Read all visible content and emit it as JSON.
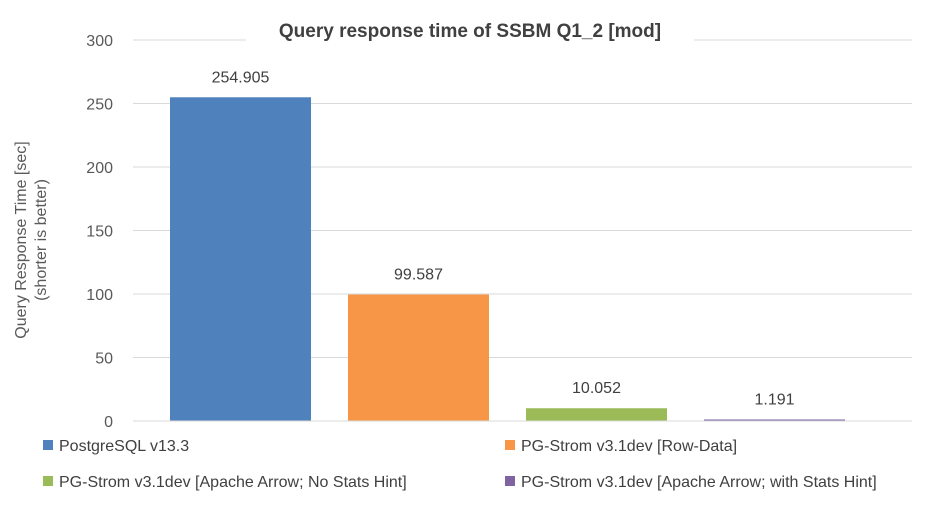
{
  "chart_data": {
    "type": "bar",
    "title": "Query response time of SSBM Q1_2 [mod]",
    "ylabel_lines": [
      "Query Response Time [sec]",
      "(shorter is better)"
    ],
    "ylim": [
      0,
      300
    ],
    "yticks": [
      0,
      50,
      100,
      150,
      200,
      250,
      300
    ],
    "grid": true,
    "legend_position": "bottom",
    "series": [
      {
        "name": "PostgreSQL v13.3",
        "value": 254.905,
        "label": "254.905",
        "color": "#4F81BD"
      },
      {
        "name": "PG-Strom v3.1dev [Row-Data]",
        "value": 99.587,
        "label": "99.587",
        "color": "#F79646"
      },
      {
        "name": "PG-Strom v3.1dev [Apache Arrow; No Stats Hint]",
        "value": 10.052,
        "label": "10.052",
        "color": "#9BBB59"
      },
      {
        "name": "PG-Strom v3.1dev [Apache Arrow; with Stats Hint]",
        "value": 1.191,
        "label": "1.191",
        "color": "#8064A2"
      }
    ]
  }
}
